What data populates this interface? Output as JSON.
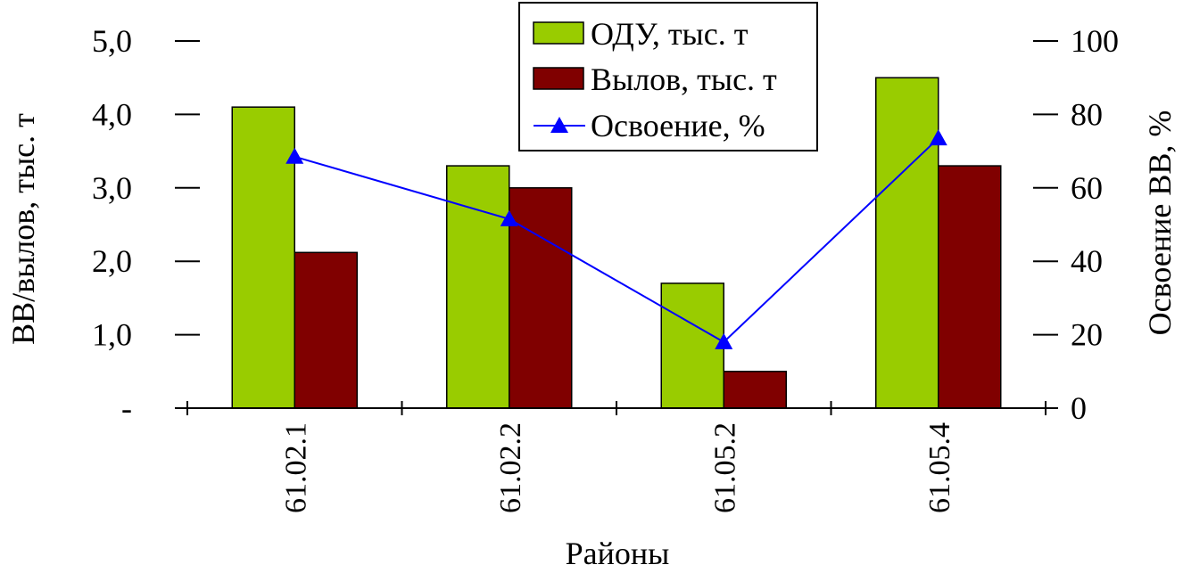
{
  "chart_data": {
    "type": "bar",
    "categories": [
      "61.02.1",
      "61.02.2",
      "61.05.2",
      "61.05.4"
    ],
    "series": [
      {
        "name": "ОДУ, тыс. т",
        "type": "bar",
        "axis": "left",
        "values": [
          4.1,
          3.3,
          1.7,
          4.5
        ],
        "color": "#99CC00"
      },
      {
        "name": "Вылов, тыс. т",
        "type": "bar",
        "axis": "left",
        "values": [
          2.12,
          3.0,
          0.5,
          3.3
        ],
        "color": "#800000"
      },
      {
        "name": "Освоение, %",
        "type": "line",
        "axis": "right",
        "values": [
          68.5,
          51.5,
          18.0,
          73.5
        ],
        "color": "#0000FF"
      }
    ],
    "xlabel": "Районы",
    "ylabel": "ВВ/вылов, тыс. т",
    "y2label": "Освоение ВВ, %",
    "ylim": [
      0,
      5
    ],
    "y2lim": [
      0,
      100
    ],
    "yticks": [
      "-",
      "1,0",
      "2,0",
      "3,0",
      "4,0",
      "5,0"
    ],
    "y2ticks": [
      "0",
      "20",
      "40",
      "60",
      "80",
      "100"
    ],
    "legend_position": "top-center",
    "grid": false
  }
}
